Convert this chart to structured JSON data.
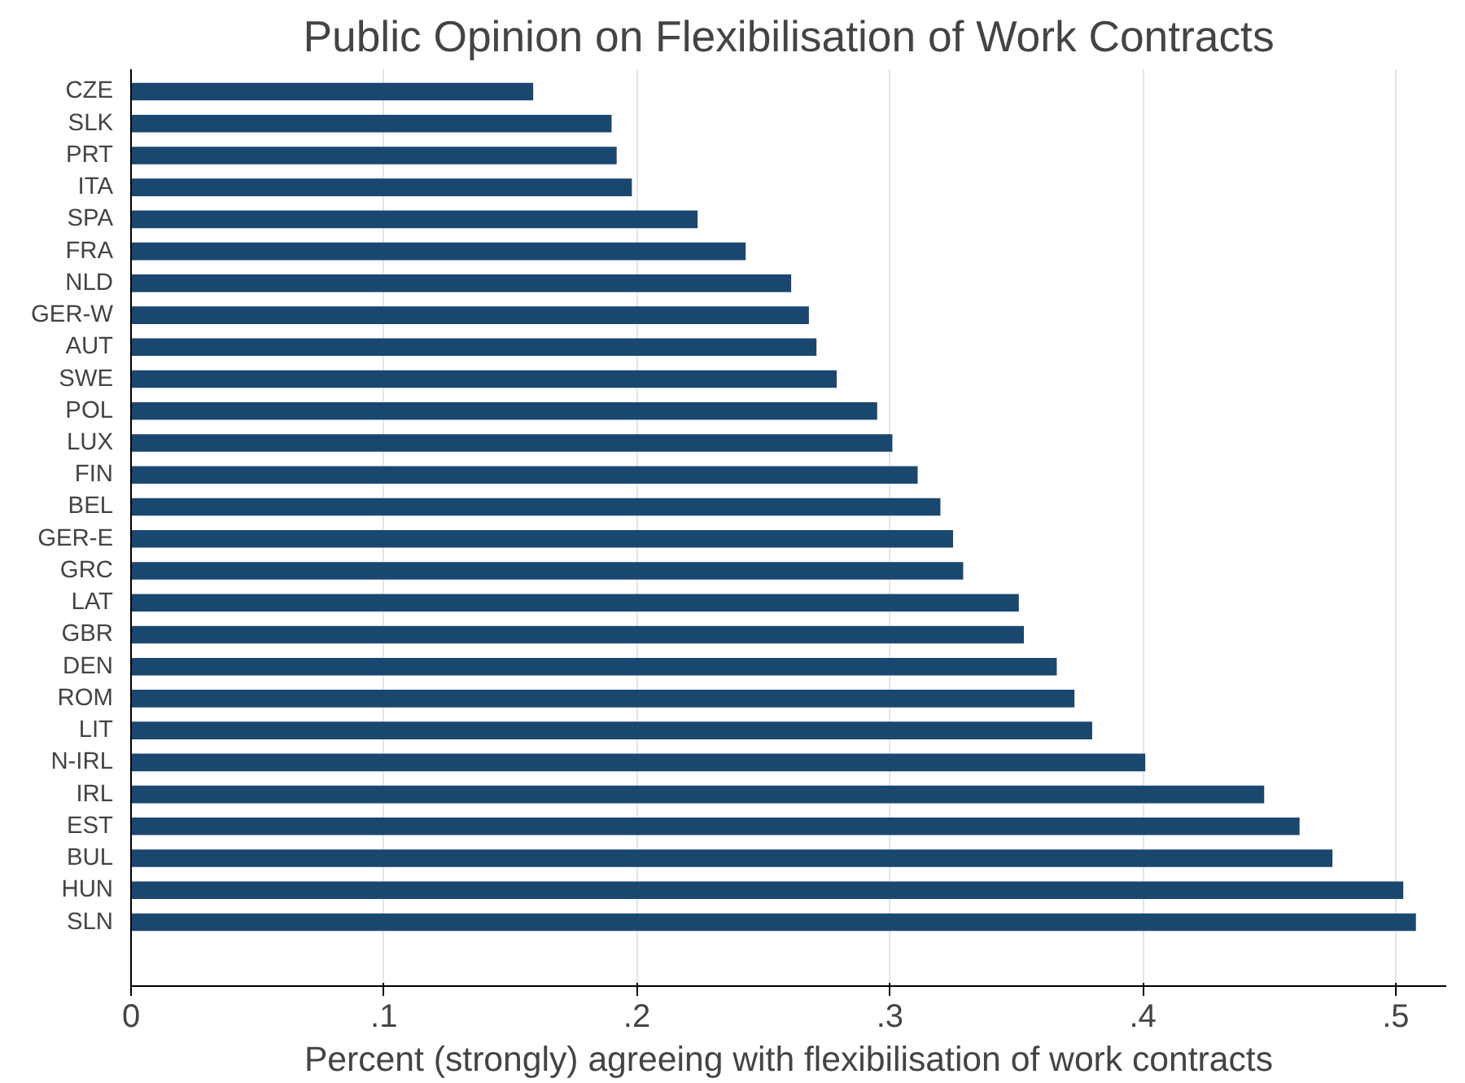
{
  "chart_data": {
    "type": "bar",
    "orientation": "horizontal",
    "title": "Public Opinion on Flexibilisation of Work Contracts",
    "xlabel": "Percent (strongly) agreeing with flexibilisation of work contracts",
    "categories": [
      "CZE",
      "SLK",
      "PRT",
      "ITA",
      "SPA",
      "FRA",
      "NLD",
      "GER-W",
      "AUT",
      "SWE",
      "POL",
      "LUX",
      "FIN",
      "BEL",
      "GER-E",
      "GRC",
      "LAT",
      "GBR",
      "DEN",
      "ROM",
      "LIT",
      "N-IRL",
      "IRL",
      "EST",
      "BUL",
      "HUN",
      "SLN"
    ],
    "values": [
      0.159,
      0.19,
      0.192,
      0.198,
      0.224,
      0.243,
      0.261,
      0.268,
      0.271,
      0.279,
      0.295,
      0.301,
      0.311,
      0.32,
      0.325,
      0.329,
      0.351,
      0.353,
      0.366,
      0.373,
      0.38,
      0.401,
      0.448,
      0.462,
      0.475,
      0.503,
      0.508
    ],
    "color": "#1a476f",
    "xlim": [
      0,
      0.52
    ],
    "xticks": [
      0,
      {
        "value": 0.1,
        "label": ".1"
      },
      {
        "value": 0.2,
        "label": ".2"
      },
      {
        "value": 0.3,
        "label": ".3"
      },
      {
        "value": 0.4,
        "label": ".4"
      },
      {
        "value": 0.5,
        "label": ".5"
      }
    ],
    "grid": "x"
  }
}
